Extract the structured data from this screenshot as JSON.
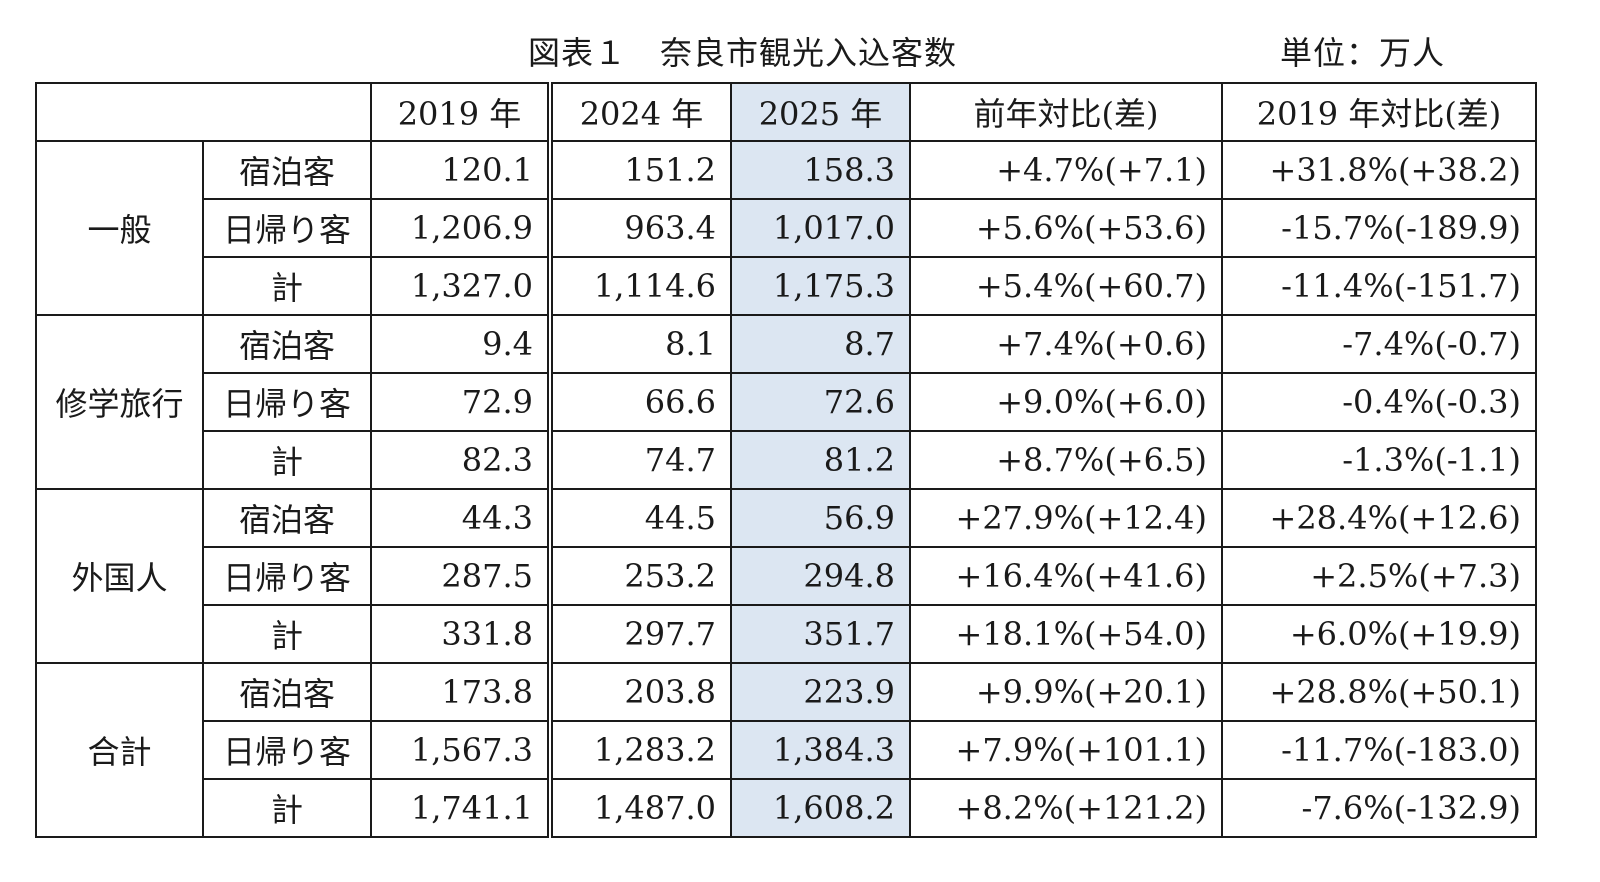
{
  "title": "図表１　奈良市観光入込客数",
  "unit": "単位：万人",
  "headers": {
    "blank": "",
    "y2019": "2019 年",
    "y2024": "2024 年",
    "y2025": "2025 年",
    "yoy": "前年対比(差)",
    "vs2019": "2019 年対比(差)"
  },
  "rows": [
    {
      "group": "一般",
      "sub": "宿泊客",
      "y2019": "120.1",
      "y2024": "151.2",
      "y2025": "158.3",
      "yoy": "+4.7%(+7.1)",
      "vs2019": "+31.8%(+38.2)"
    },
    {
      "sub": "日帰り客",
      "y2019": "1,206.9",
      "y2024": "963.4",
      "y2025": "1,017.0",
      "yoy": "+5.6%(+53.6)",
      "vs2019": "-15.7%(-189.9)"
    },
    {
      "sub": "計",
      "y2019": "1,327.0",
      "y2024": "1,114.6",
      "y2025": "1,175.3",
      "yoy": "+5.4%(+60.7)",
      "vs2019": "-11.4%(-151.7)"
    },
    {
      "group": "修学旅行",
      "sub": "宿泊客",
      "y2019": "9.4",
      "y2024": "8.1",
      "y2025": "8.7",
      "yoy": "+7.4%(+0.6)",
      "vs2019": "-7.4%(-0.7)"
    },
    {
      "sub": "日帰り客",
      "y2019": "72.9",
      "y2024": "66.6",
      "y2025": "72.6",
      "yoy": "+9.0%(+6.0)",
      "vs2019": "-0.4%(-0.3)"
    },
    {
      "sub": "計",
      "y2019": "82.3",
      "y2024": "74.7",
      "y2025": "81.2",
      "yoy": "+8.7%(+6.5)",
      "vs2019": "-1.3%(-1.1)"
    },
    {
      "group": "外国人",
      "sub": "宿泊客",
      "y2019": "44.3",
      "y2024": "44.5",
      "y2025": "56.9",
      "yoy": "+27.9%(+12.4)",
      "vs2019": "+28.4%(+12.6)"
    },
    {
      "sub": "日帰り客",
      "y2019": "287.5",
      "y2024": "253.2",
      "y2025": "294.8",
      "yoy": "+16.4%(+41.6)",
      "vs2019": "+2.5%(+7.3)"
    },
    {
      "sub": "計",
      "y2019": "331.8",
      "y2024": "297.7",
      "y2025": "351.7",
      "yoy": "+18.1%(+54.0)",
      "vs2019": "+6.0%(+19.9)"
    },
    {
      "group": "合計",
      "sub": "宿泊客",
      "y2019": "173.8",
      "y2024": "203.8",
      "y2025": "223.9",
      "yoy": "+9.9%(+20.1)",
      "vs2019": "+28.8%(+50.1)"
    },
    {
      "sub": "日帰り客",
      "y2019": "1,567.3",
      "y2024": "1,283.2",
      "y2025": "1,384.3",
      "yoy": "+7.9%(+101.1)",
      "vs2019": "-11.7%(-183.0)"
    },
    {
      "sub": "計",
      "y2019": "1,741.1",
      "y2024": "1,487.0",
      "y2025": "1,608.2",
      "yoy": "+8.2%(+121.2)",
      "vs2019": "-7.6%(-132.9)"
    }
  ],
  "colors": {
    "highlight_2025": "#dce6f2"
  }
}
